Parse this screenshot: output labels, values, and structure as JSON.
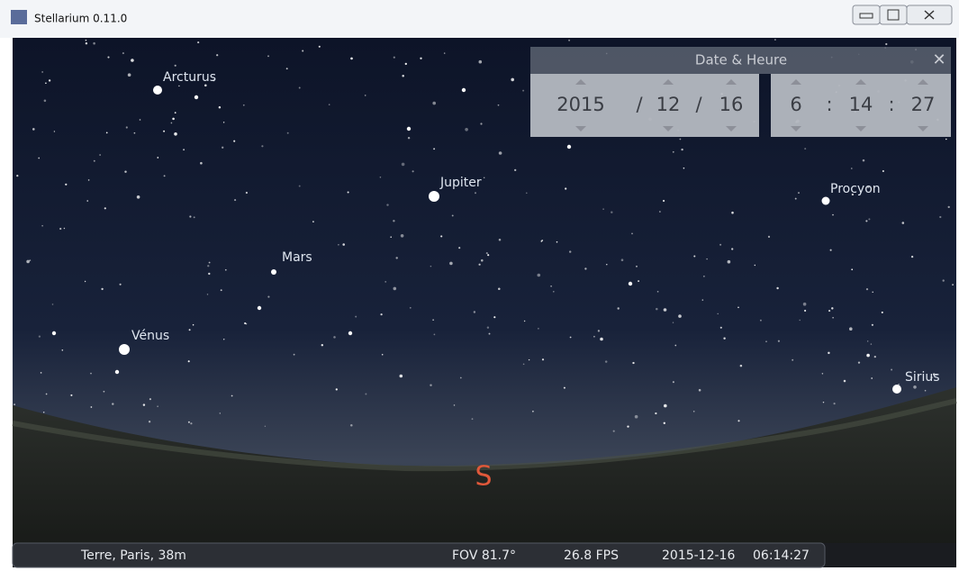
{
  "window": {
    "title": "Stellarium 0.11.0"
  },
  "sky": {
    "labels": [
      "Arcturus",
      "Jupiter",
      "Mars",
      "Vénus",
      "Procyon",
      "Sirius"
    ],
    "cardinal": "S"
  },
  "dialog": {
    "title": "Date & Heure",
    "date": {
      "year": "2015",
      "month": "12",
      "day": "16",
      "separator": "/"
    },
    "time": {
      "hour": "6",
      "minute": "14",
      "second": "27",
      "separator": ":"
    }
  },
  "status_bar": {
    "location": "Terre, Paris, 38m",
    "fov": "FOV 81.7°",
    "fps": "26.8 FPS",
    "date": "2015-12-16",
    "time": "06:14:27"
  }
}
